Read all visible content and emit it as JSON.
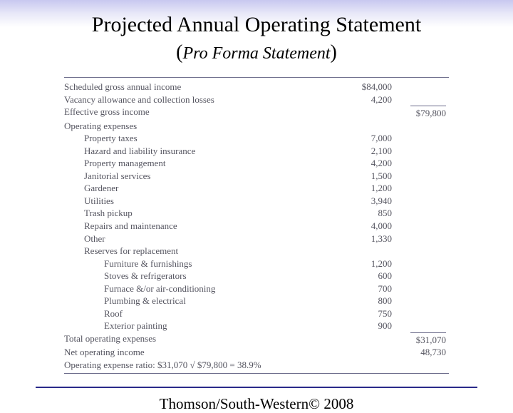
{
  "colors": {
    "gradient_top": "#c8c8f0",
    "gradient_bottom": "#ffffff",
    "rule": "#6b6b8a",
    "divider": "#2a2a8a",
    "text_body": "#555560",
    "text_title": "#000000"
  },
  "title": "Projected Annual Operating Statement",
  "subtitle": "Pro Forma Statement",
  "footer": "Thomson/South-Western© 2008",
  "rows": [
    {
      "label": "Scheduled gross annual income",
      "col1": "$84,000",
      "col2": "",
      "indent": 0
    },
    {
      "label": "Vacancy allowance and collection losses",
      "col1": "4,200",
      "col2": "",
      "indent": 0
    },
    {
      "label": "Effective gross income",
      "col1": "",
      "col2": "$79,800",
      "indent": 0,
      "topRule2": true
    },
    {
      "label": "Operating expenses",
      "col1": "",
      "col2": "",
      "indent": 0
    },
    {
      "label": "Property taxes",
      "col1": "7,000",
      "col2": "",
      "indent": 1
    },
    {
      "label": "Hazard and liability insurance",
      "col1": "2,100",
      "col2": "",
      "indent": 1
    },
    {
      "label": "Property management",
      "col1": "4,200",
      "col2": "",
      "indent": 1
    },
    {
      "label": "Janitorial services",
      "col1": "1,500",
      "col2": "",
      "indent": 1
    },
    {
      "label": "Gardener",
      "col1": "1,200",
      "col2": "",
      "indent": 1
    },
    {
      "label": "Utilities",
      "col1": "3,940",
      "col2": "",
      "indent": 1
    },
    {
      "label": "Trash pickup",
      "col1": "850",
      "col2": "",
      "indent": 1
    },
    {
      "label": "Repairs and maintenance",
      "col1": "4,000",
      "col2": "",
      "indent": 1
    },
    {
      "label": "Other",
      "col1": "1,330",
      "col2": "",
      "indent": 1
    },
    {
      "label": "Reserves for replacement",
      "col1": "",
      "col2": "",
      "indent": 1
    },
    {
      "label": "Furniture & furnishings",
      "col1": "1,200",
      "col2": "",
      "indent": 2
    },
    {
      "label": "Stoves & refrigerators",
      "col1": "600",
      "col2": "",
      "indent": 2
    },
    {
      "label": "Furnace &/or air-conditioning",
      "col1": "700",
      "col2": "",
      "indent": 2
    },
    {
      "label": "Plumbing & electrical",
      "col1": "800",
      "col2": "",
      "indent": 2
    },
    {
      "label": "Roof",
      "col1": "750",
      "col2": "",
      "indent": 2
    },
    {
      "label": "Exterior painting",
      "col1": "900",
      "col2": "",
      "indent": 2
    },
    {
      "label": "Total operating expenses",
      "col1": "",
      "col2": "$31,070",
      "indent": 0,
      "topRule2": true
    },
    {
      "label": "Net operating income",
      "col1": "",
      "col2": "48,730",
      "indent": 0
    },
    {
      "label": "Operating expense ratio: $31,070 √ $79,800 = 38.9%",
      "col1": "",
      "col2": "",
      "indent": 0
    }
  ]
}
